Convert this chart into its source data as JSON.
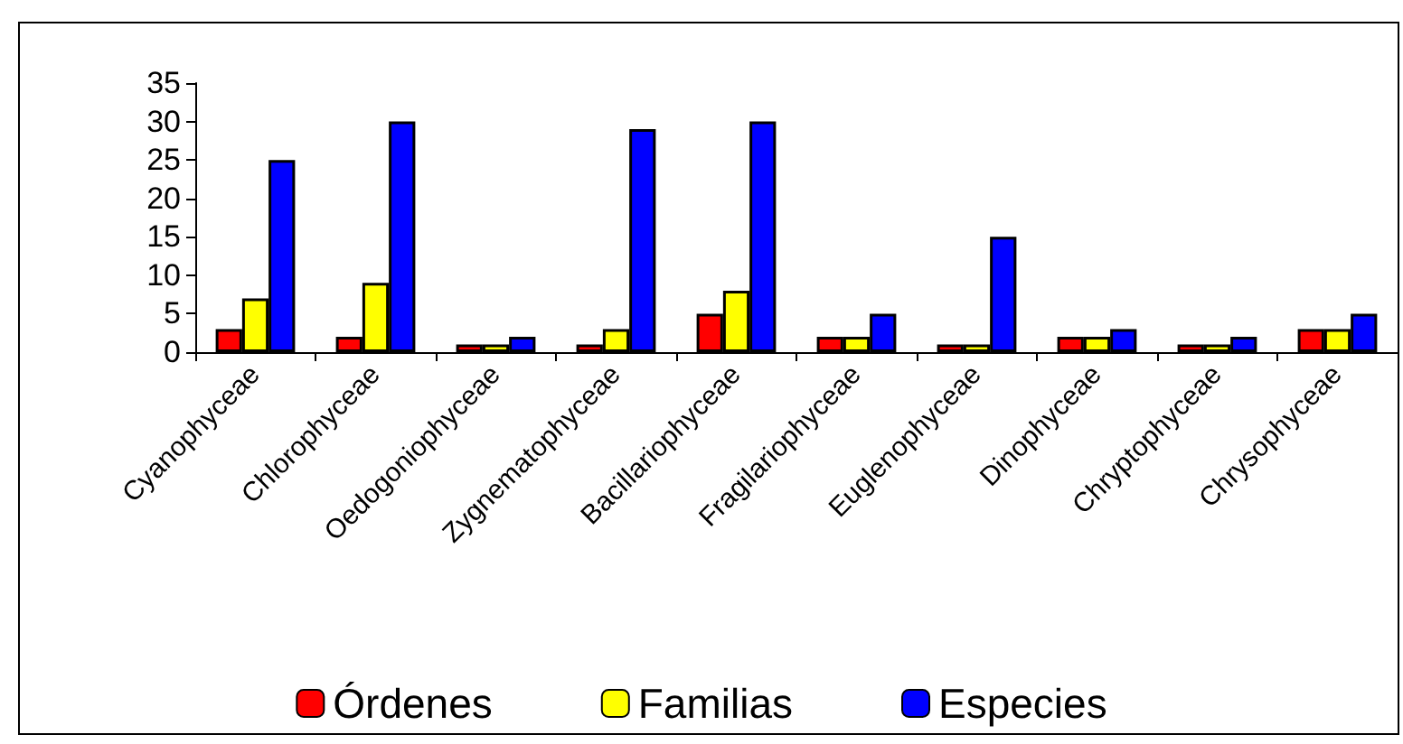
{
  "chart_data": {
    "type": "bar",
    "categories": [
      "Cyanophyceae",
      "Chlorophyceae",
      "Oedogoniophyceae",
      "Zygnematophyceae",
      "Bacillariophyceae",
      "Fragilariophyceae",
      "Euglenophyceae",
      "Dinophyceae",
      "Chryptophyceae",
      "Chrysophyceae"
    ],
    "series": [
      {
        "name": "Órdenes",
        "color": "#ff0000",
        "values": [
          3,
          2,
          1,
          1,
          5,
          2,
          1,
          2,
          1,
          3
        ]
      },
      {
        "name": "Familias",
        "color": "#ffff00",
        "values": [
          7,
          9,
          1,
          3,
          8,
          2,
          1,
          2,
          1,
          3
        ]
      },
      {
        "name": "Especies",
        "color": "#0000ff",
        "values": [
          25,
          30,
          2,
          29,
          30,
          5,
          15,
          3,
          2,
          5
        ]
      }
    ],
    "ylim": [
      0,
      35
    ],
    "yticks": [
      0,
      5,
      10,
      15,
      20,
      25,
      30,
      35
    ],
    "grid": false,
    "legend": "bottom"
  }
}
